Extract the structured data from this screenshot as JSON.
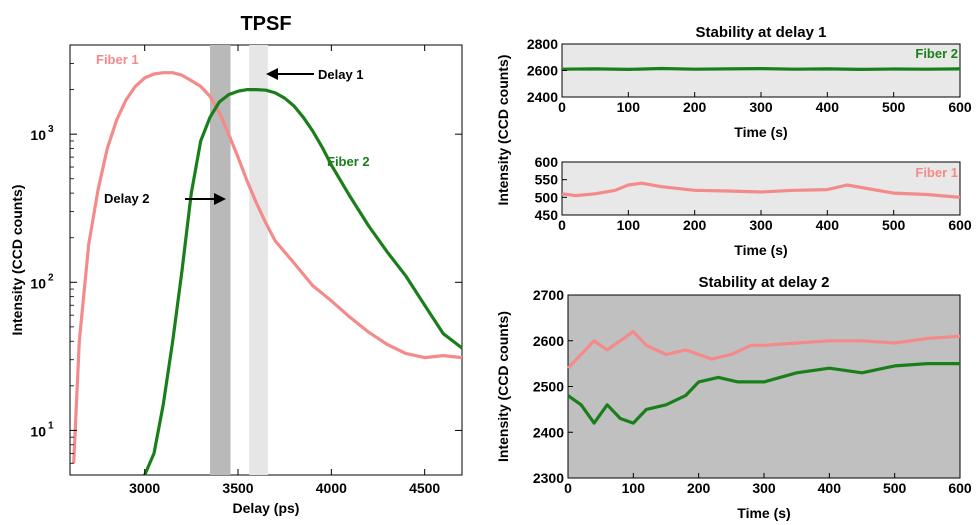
{
  "colors": {
    "fiber1": "#f48a8a",
    "fiber2": "#1a7f1a",
    "band_dark": "#b9b9b9",
    "band_light": "#e6e6e6",
    "panel_bg_light": "#e8e8e8",
    "panel_bg_dark": "#c0c0c0"
  },
  "chart_data": [
    {
      "id": "tpsf",
      "type": "line",
      "title": "TPSF",
      "xlabel": "Delay (ps)",
      "ylabel": "Intensity (CCD counts)",
      "xlim": [
        2600,
        4700
      ],
      "ylim": [
        5,
        4000
      ],
      "yscale": "log",
      "xticks": [
        3000,
        3500,
        4000,
        4500
      ],
      "yticks": [
        {
          "value": 10,
          "base": "10",
          "exp": "1"
        },
        {
          "value": 100,
          "base": "10",
          "exp": "2"
        },
        {
          "value": 1000,
          "base": "10",
          "exp": "3"
        }
      ],
      "series": [
        {
          "name": "Fiber 1",
          "color": "#f48a8a",
          "x": [
            2620,
            2650,
            2700,
            2750,
            2800,
            2850,
            2900,
            2950,
            3000,
            3050,
            3100,
            3150,
            3200,
            3250,
            3300,
            3350,
            3400,
            3450,
            3500,
            3550,
            3600,
            3650,
            3700,
            3800,
            3900,
            4000,
            4100,
            4200,
            4300,
            4400,
            4500,
            4600,
            4700
          ],
          "y": [
            6,
            40,
            180,
            420,
            800,
            1250,
            1700,
            2100,
            2400,
            2550,
            2600,
            2600,
            2500,
            2300,
            2100,
            1800,
            1400,
            1000,
            700,
            480,
            340,
            250,
            190,
            135,
            95,
            75,
            58,
            46,
            38,
            33,
            31,
            32,
            31
          ]
        },
        {
          "name": "Fiber 2",
          "color": "#1a7f1a",
          "x": [
            2620,
            2650,
            3000,
            3050,
            3100,
            3150,
            3200,
            3250,
            3300,
            3350,
            3400,
            3450,
            3500,
            3550,
            3600,
            3650,
            3700,
            3750,
            3800,
            3850,
            3900,
            3950,
            4000,
            4100,
            4200,
            4300,
            4400,
            4500,
            4600,
            4700
          ],
          "y": [
            null,
            null,
            5,
            7,
            15,
            40,
            120,
            400,
            900,
            1300,
            1650,
            1850,
            1950,
            2000,
            2000,
            1980,
            1900,
            1750,
            1550,
            1300,
            1050,
            820,
            620,
            380,
            240,
            160,
            110,
            70,
            45,
            36
          ]
        }
      ],
      "annotations": [
        {
          "text": "Fiber 1",
          "color": "#f48a8a"
        },
        {
          "text": "Fiber 2",
          "color": "#1a7f1a"
        },
        {
          "text": "Delay 1",
          "color": "#000000"
        },
        {
          "text": "Delay 2",
          "color": "#000000"
        }
      ],
      "bands": [
        {
          "name": "Delay 2",
          "x": [
            3350,
            3460
          ],
          "color": "#b9b9b9"
        },
        {
          "name": "Delay 1",
          "x": [
            3560,
            3660
          ],
          "color": "#e6e6e6"
        }
      ]
    },
    {
      "id": "delay1_fiber2",
      "type": "line",
      "title": "Stability at delay 1",
      "xlabel": "Time (s)",
      "xlim": [
        0,
        600
      ],
      "ylim": [
        2400,
        2800
      ],
      "xticks": [
        0,
        100,
        200,
        300,
        400,
        500,
        600
      ],
      "yticks": [
        2400,
        2600,
        2800
      ],
      "series": [
        {
          "name": "Fiber 2",
          "color": "#1a7f1a",
          "x": [
            0,
            50,
            100,
            150,
            200,
            250,
            300,
            350,
            400,
            450,
            500,
            550,
            600
          ],
          "y": [
            2610,
            2612,
            2608,
            2615,
            2610,
            2612,
            2614,
            2610,
            2612,
            2608,
            2611,
            2610,
            2612
          ]
        }
      ]
    },
    {
      "id": "delay1_fiber1",
      "type": "line",
      "xlabel": "Time (s)",
      "xlim": [
        0,
        600
      ],
      "ylim": [
        450,
        600
      ],
      "xticks": [
        0,
        100,
        200,
        300,
        400,
        500,
        600
      ],
      "yticks": [
        450,
        500,
        550,
        600
      ],
      "series": [
        {
          "name": "Fiber 1",
          "color": "#f48a8a",
          "x": [
            0,
            20,
            50,
            80,
            100,
            120,
            150,
            200,
            250,
            300,
            350,
            400,
            430,
            460,
            500,
            550,
            600
          ],
          "y": [
            510,
            505,
            510,
            520,
            535,
            540,
            530,
            520,
            518,
            515,
            520,
            522,
            535,
            525,
            512,
            508,
            500
          ]
        }
      ]
    },
    {
      "id": "delay2",
      "type": "line",
      "title": "Stability at delay 2",
      "xlabel": "Time (s)",
      "ylabel": "Intensity (CCD counts)",
      "xlim": [
        0,
        600
      ],
      "ylim": [
        2300,
        2700
      ],
      "xticks": [
        0,
        100,
        200,
        300,
        400,
        500,
        600
      ],
      "yticks": [
        2300,
        2400,
        2500,
        2600,
        2700
      ],
      "series": [
        {
          "name": "Fiber 1",
          "color": "#f48a8a",
          "x": [
            0,
            20,
            40,
            60,
            80,
            100,
            120,
            150,
            180,
            200,
            220,
            250,
            280,
            300,
            350,
            400,
            450,
            500,
            550,
            600
          ],
          "y": [
            2540,
            2570,
            2600,
            2580,
            2600,
            2620,
            2590,
            2570,
            2580,
            2570,
            2560,
            2570,
            2590,
            2590,
            2595,
            2600,
            2600,
            2595,
            2605,
            2610
          ]
        },
        {
          "name": "Fiber 2",
          "color": "#1a7f1a",
          "x": [
            0,
            20,
            40,
            60,
            80,
            100,
            120,
            150,
            180,
            200,
            230,
            260,
            300,
            350,
            400,
            450,
            500,
            550,
            600
          ],
          "y": [
            2480,
            2460,
            2420,
            2460,
            2430,
            2420,
            2450,
            2460,
            2480,
            2510,
            2520,
            2510,
            2510,
            2530,
            2540,
            2530,
            2545,
            2550,
            2550
          ]
        }
      ]
    }
  ],
  "shared": {
    "ylabel": "Intensity (CCD counts)"
  }
}
